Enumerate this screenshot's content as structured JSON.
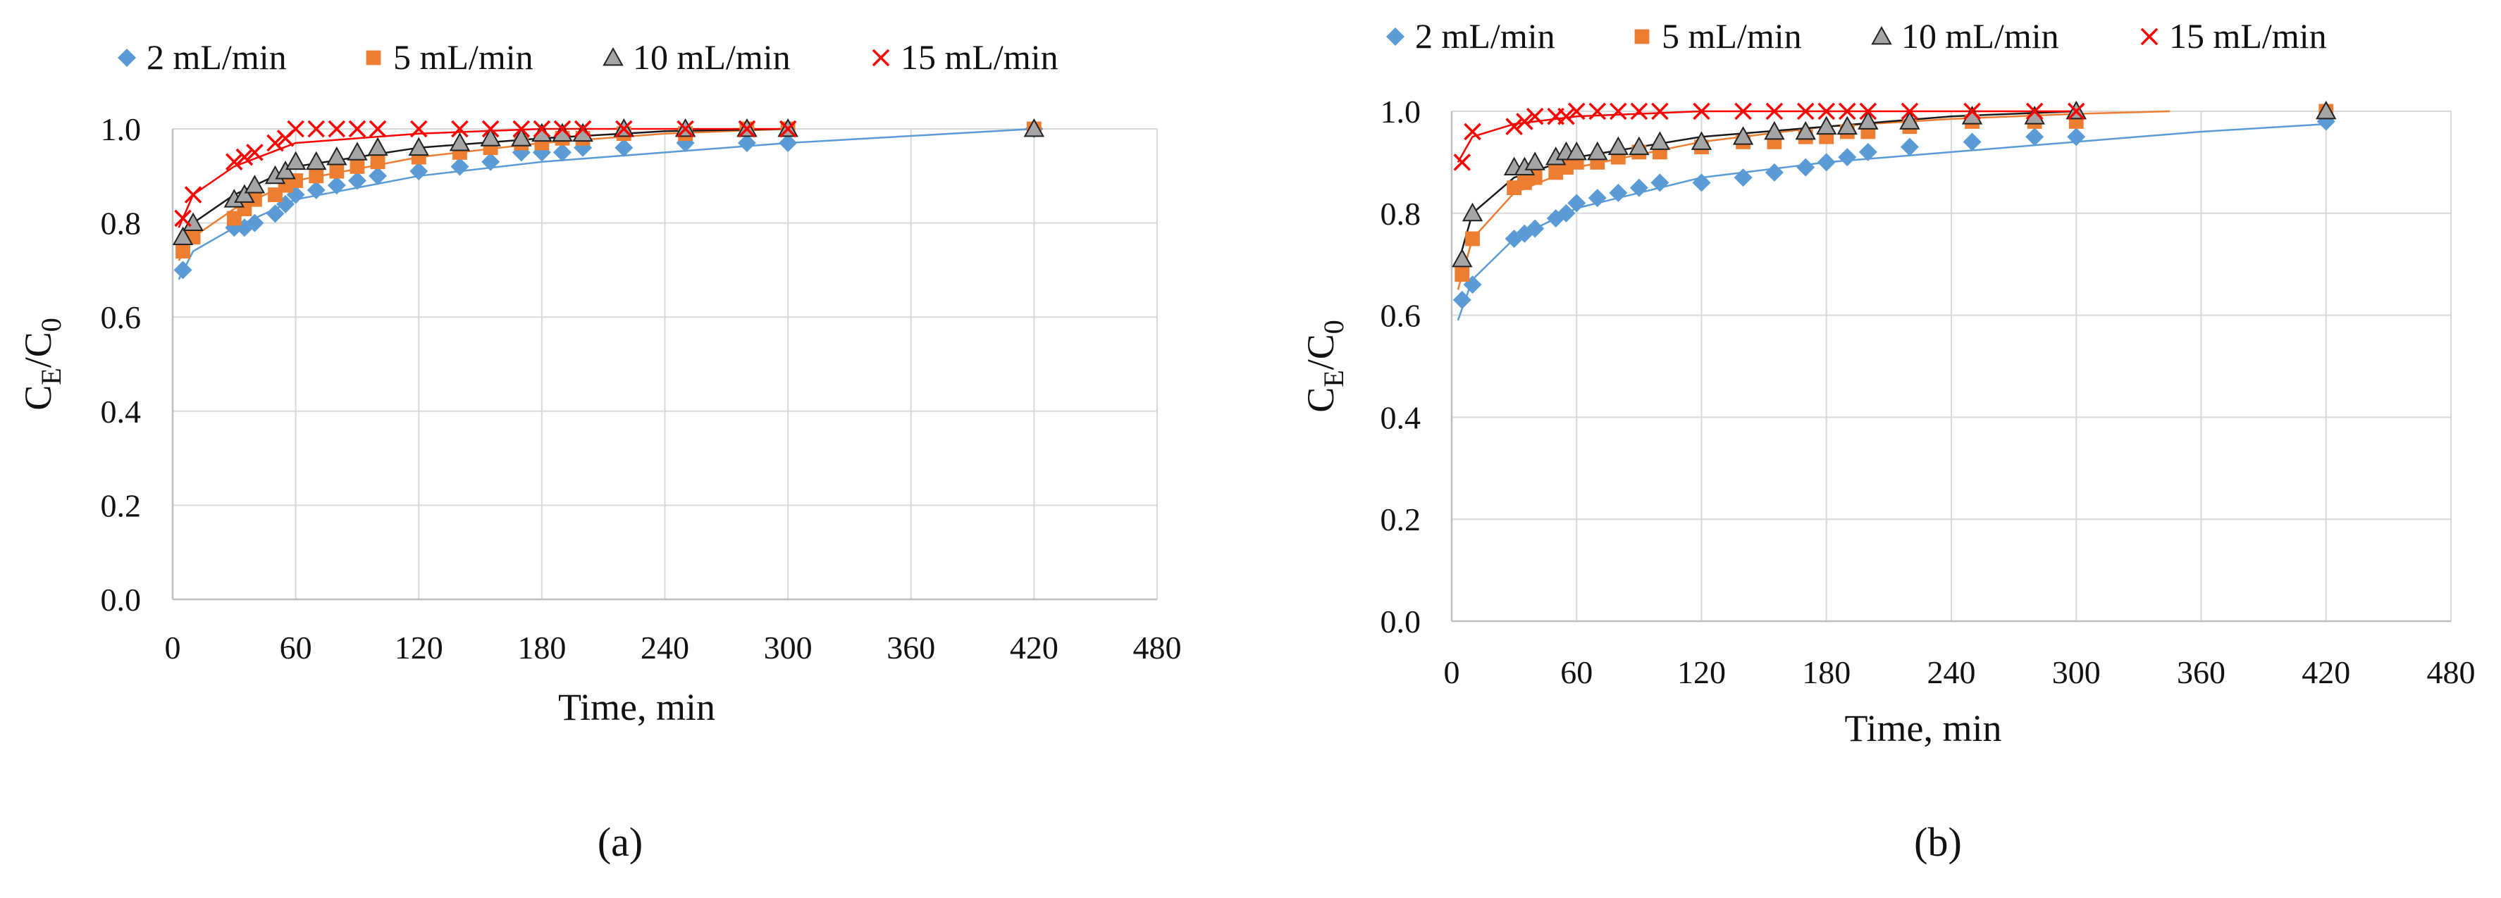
{
  "chart_data": [
    {
      "type": "scatter",
      "panel": "a",
      "xlabel": "Time, min",
      "ylabel": "CE/C0",
      "xlim": [
        0,
        480
      ],
      "ylim": [
        0.0,
        1.0
      ],
      "xticks": [
        "0",
        "60",
        "120",
        "180",
        "240",
        "300",
        "360",
        "420",
        "480"
      ],
      "yticks": [
        "0.0",
        "0.2",
        "0.4",
        "0.6",
        "0.8",
        "1.0"
      ],
      "legend_position": "top",
      "series": [
        {
          "name": "2 mL/min",
          "marker": "diamond",
          "color": "#5b9bd5",
          "x": [
            5,
            30,
            35,
            40,
            50,
            55,
            60,
            70,
            80,
            90,
            100,
            120,
            140,
            155,
            170,
            180,
            190,
            200,
            220,
            250,
            280,
            300,
            420
          ],
          "y": [
            0.7,
            0.79,
            0.79,
            0.8,
            0.82,
            0.84,
            0.86,
            0.87,
            0.88,
            0.89,
            0.9,
            0.91,
            0.92,
            0.93,
            0.95,
            0.95,
            0.95,
            0.96,
            0.96,
            0.97,
            0.97,
            0.97,
            1.0
          ]
        },
        {
          "name": "5 mL/min",
          "marker": "square",
          "color": "#ed7d31",
          "x": [
            5,
            10,
            30,
            35,
            40,
            50,
            55,
            60,
            70,
            80,
            90,
            100,
            120,
            140,
            155,
            170,
            180,
            190,
            200,
            220,
            250,
            280,
            300,
            420
          ],
          "y": [
            0.74,
            0.77,
            0.81,
            0.83,
            0.85,
            0.86,
            0.88,
            0.89,
            0.9,
            0.91,
            0.92,
            0.93,
            0.94,
            0.95,
            0.96,
            0.97,
            0.97,
            0.98,
            0.98,
            0.99,
            0.99,
            1.0,
            1.0,
            1.0
          ]
        },
        {
          "name": "10 mL/min",
          "marker": "triangle",
          "color": "#a5a5a5",
          "x": [
            5,
            10,
            30,
            35,
            40,
            50,
            55,
            60,
            70,
            80,
            90,
            100,
            120,
            140,
            155,
            170,
            180,
            190,
            200,
            220,
            250,
            280,
            300,
            420
          ],
          "y": [
            0.77,
            0.8,
            0.85,
            0.86,
            0.88,
            0.9,
            0.91,
            0.93,
            0.93,
            0.94,
            0.95,
            0.96,
            0.96,
            0.97,
            0.98,
            0.98,
            0.99,
            0.99,
            0.99,
            1.0,
            1.0,
            1.0,
            1.0,
            1.0
          ]
        },
        {
          "name": "15 mL/min",
          "marker": "x",
          "color": "#ff0000",
          "x": [
            5,
            10,
            30,
            35,
            40,
            50,
            55,
            60,
            70,
            80,
            90,
            100,
            120,
            140,
            155,
            170,
            180,
            190,
            200,
            220,
            250,
            280,
            300
          ],
          "y": [
            0.81,
            0.86,
            0.93,
            0.94,
            0.95,
            0.97,
            0.98,
            1.0,
            1.0,
            1.0,
            1.0,
            1.0,
            1.0,
            1.0,
            1.0,
            1.0,
            1.0,
            1.0,
            1.0,
            1.0,
            1.0,
            1.0,
            1.0
          ]
        }
      ],
      "fits": [
        {
          "series": "2 mL/min",
          "color": "#5b9bd5",
          "x": [
            3,
            10,
            30,
            60,
            120,
            180,
            240,
            300,
            360,
            420
          ],
          "y": [
            0.68,
            0.74,
            0.79,
            0.85,
            0.9,
            0.93,
            0.95,
            0.97,
            0.985,
            1.0
          ]
        },
        {
          "series": "5 mL/min",
          "color": "#ed7d31",
          "x": [
            3,
            10,
            30,
            60,
            120,
            180,
            240,
            300
          ],
          "y": [
            0.72,
            0.77,
            0.83,
            0.89,
            0.94,
            0.97,
            0.99,
            1.0
          ]
        },
        {
          "series": "10 mL/min",
          "color": "#1a1a1a",
          "x": [
            3,
            10,
            30,
            60,
            120,
            180,
            240,
            300
          ],
          "y": [
            0.74,
            0.8,
            0.86,
            0.92,
            0.96,
            0.98,
            0.995,
            1.0
          ]
        },
        {
          "series": "15 mL/min",
          "color": "#ff0000",
          "x": [
            3,
            10,
            30,
            60,
            120,
            180,
            240,
            300
          ],
          "y": [
            0.79,
            0.86,
            0.92,
            0.97,
            0.99,
            1.0,
            1.0,
            1.0
          ]
        }
      ]
    },
    {
      "type": "scatter",
      "panel": "b",
      "xlabel": "Time, min",
      "ylabel": "CE/C0",
      "xlim": [
        0,
        480
      ],
      "ylim": [
        0.0,
        1.0
      ],
      "xticks": [
        "0",
        "60",
        "120",
        "180",
        "240",
        "300",
        "360",
        "420",
        "480"
      ],
      "yticks": [
        "0.0",
        "0.2",
        "0.4",
        "0.6",
        "0.8",
        "1.0"
      ],
      "legend_position": "top",
      "series": [
        {
          "name": "2 mL/min",
          "marker": "diamond",
          "color": "#5b9bd5",
          "x": [
            5,
            10,
            30,
            35,
            40,
            50,
            55,
            60,
            70,
            80,
            90,
            100,
            120,
            140,
            155,
            170,
            180,
            190,
            200,
            220,
            250,
            280,
            300,
            420
          ],
          "y": [
            0.63,
            0.66,
            0.75,
            0.76,
            0.77,
            0.79,
            0.8,
            0.82,
            0.83,
            0.84,
            0.85,
            0.86,
            0.86,
            0.87,
            0.88,
            0.89,
            0.9,
            0.91,
            0.92,
            0.93,
            0.94,
            0.95,
            0.95,
            0.98
          ]
        },
        {
          "name": "5 mL/min",
          "marker": "square",
          "color": "#ed7d31",
          "x": [
            5,
            10,
            30,
            35,
            40,
            50,
            55,
            60,
            70,
            80,
            90,
            100,
            120,
            140,
            155,
            170,
            180,
            190,
            200,
            220,
            250,
            280,
            300,
            420
          ],
          "y": [
            0.68,
            0.75,
            0.85,
            0.86,
            0.87,
            0.88,
            0.89,
            0.9,
            0.9,
            0.91,
            0.92,
            0.92,
            0.93,
            0.94,
            0.94,
            0.95,
            0.95,
            0.96,
            0.96,
            0.97,
            0.98,
            0.98,
            0.98,
            1.0
          ]
        },
        {
          "name": "10 mL/min",
          "marker": "triangle",
          "color": "#a5a5a5",
          "x": [
            5,
            10,
            30,
            35,
            40,
            50,
            55,
            60,
            70,
            80,
            90,
            100,
            120,
            140,
            155,
            170,
            180,
            190,
            200,
            220,
            250,
            280,
            300,
            420
          ],
          "y": [
            0.71,
            0.8,
            0.89,
            0.89,
            0.9,
            0.91,
            0.92,
            0.92,
            0.92,
            0.93,
            0.93,
            0.94,
            0.94,
            0.95,
            0.96,
            0.96,
            0.97,
            0.97,
            0.98,
            0.98,
            0.99,
            0.99,
            1.0,
            1.0
          ]
        },
        {
          "name": "15 mL/min",
          "marker": "x",
          "color": "#ff0000",
          "x": [
            5,
            10,
            30,
            35,
            40,
            50,
            55,
            60,
            70,
            80,
            90,
            100,
            120,
            140,
            155,
            170,
            180,
            190,
            200,
            220,
            250,
            280,
            300
          ],
          "y": [
            0.9,
            0.96,
            0.97,
            0.98,
            0.99,
            0.99,
            0.99,
            1.0,
            1.0,
            1.0,
            1.0,
            1.0,
            1.0,
            1.0,
            1.0,
            1.0,
            1.0,
            1.0,
            1.0,
            1.0,
            1.0,
            1.0,
            1.0
          ]
        }
      ],
      "fits": [
        {
          "series": "2 mL/min",
          "color": "#5b9bd5",
          "x": [
            3,
            10,
            30,
            60,
            120,
            180,
            240,
            300,
            360,
            420
          ],
          "y": [
            0.59,
            0.67,
            0.75,
            0.81,
            0.87,
            0.9,
            0.92,
            0.94,
            0.96,
            0.975
          ]
        },
        {
          "series": "5 mL/min",
          "color": "#ed7d31",
          "x": [
            3,
            10,
            30,
            60,
            120,
            180,
            240,
            300,
            345
          ],
          "y": [
            0.65,
            0.75,
            0.84,
            0.89,
            0.94,
            0.97,
            0.985,
            0.995,
            1.0
          ]
        },
        {
          "series": "10 mL/min",
          "color": "#1a1a1a",
          "x": [
            3,
            10,
            30,
            60,
            120,
            180,
            240,
            300
          ],
          "y": [
            0.7,
            0.8,
            0.87,
            0.91,
            0.95,
            0.97,
            0.99,
            1.0
          ]
        },
        {
          "series": "15 mL/min",
          "color": "#ff0000",
          "x": [
            3,
            10,
            30,
            60,
            120,
            180,
            240,
            300
          ],
          "y": [
            0.9,
            0.95,
            0.975,
            0.99,
            1.0,
            1.0,
            1.0,
            1.0
          ]
        }
      ]
    }
  ],
  "captions": [
    "(a)",
    "(b)"
  ]
}
